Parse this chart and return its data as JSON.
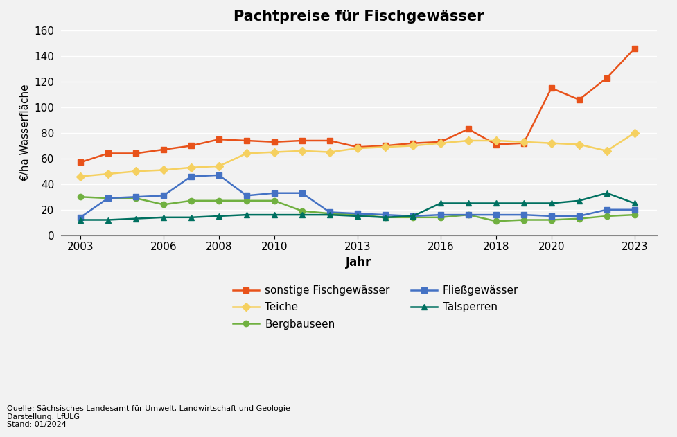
{
  "title": "Pachtpreise für Fischgewässer",
  "ylabel": "€/ha Wasserfläche",
  "xlabel": "Jahr",
  "ylim": [
    0,
    160
  ],
  "yticks": [
    0,
    20,
    40,
    60,
    80,
    100,
    120,
    140,
    160
  ],
  "source_text": "Quelle: Sächsisches Landesamt für Umwelt, Landwirtschaft und Geologie\nDarstellung: LfULG\nStand: 01/2024",
  "series": {
    "sonstige Fischgewässer": {
      "color": "#E8521A",
      "marker": "s",
      "years": [
        2003,
        2004,
        2005,
        2006,
        2007,
        2008,
        2009,
        2010,
        2011,
        2012,
        2013,
        2014,
        2015,
        2016,
        2017,
        2018,
        2019,
        2020,
        2021,
        2022,
        2023
      ],
      "values": [
        57,
        64,
        64,
        67,
        70,
        75,
        74,
        73,
        74,
        74,
        69,
        70,
        72,
        73,
        83,
        71,
        72,
        115,
        106,
        123,
        146
      ]
    },
    "Teiche": {
      "color": "#F5D060",
      "marker": "D",
      "years": [
        2003,
        2004,
        2005,
        2006,
        2007,
        2008,
        2009,
        2010,
        2011,
        2012,
        2013,
        2014,
        2015,
        2016,
        2017,
        2018,
        2019,
        2020,
        2021,
        2022,
        2023
      ],
      "values": [
        46,
        48,
        50,
        51,
        53,
        54,
        64,
        65,
        66,
        65,
        68,
        69,
        70,
        72,
        74,
        74,
        73,
        72,
        71,
        66,
        80
      ]
    },
    "Bergbauseen": {
      "color": "#70B040",
      "marker": "o",
      "years": [
        2003,
        2004,
        2005,
        2006,
        2007,
        2008,
        2009,
        2010,
        2011,
        2012,
        2013,
        2014,
        2015,
        2016,
        2017,
        2018,
        2019,
        2020,
        2021,
        2022,
        2023
      ],
      "values": [
        30,
        29,
        29,
        24,
        27,
        27,
        27,
        27,
        19,
        17,
        16,
        14,
        14,
        14,
        16,
        11,
        12,
        12,
        13,
        15,
        16
      ]
    },
    "Fließgewässer": {
      "color": "#4472C4",
      "marker": "s",
      "years": [
        2003,
        2004,
        2005,
        2006,
        2007,
        2008,
        2009,
        2010,
        2011,
        2012,
        2013,
        2014,
        2015,
        2016,
        2017,
        2018,
        2019,
        2020,
        2021,
        2022,
        2023
      ],
      "values": [
        14,
        29,
        30,
        31,
        46,
        47,
        31,
        33,
        33,
        18,
        17,
        16,
        15,
        16,
        16,
        16,
        16,
        15,
        15,
        20,
        20
      ]
    },
    "Talsperren": {
      "color": "#007060",
      "marker": "^",
      "years": [
        2003,
        2004,
        2005,
        2006,
        2007,
        2008,
        2009,
        2010,
        2011,
        2012,
        2013,
        2014,
        2015,
        2016,
        2017,
        2018,
        2019,
        2020,
        2021,
        2022,
        2023
      ],
      "values": [
        12,
        12,
        13,
        14,
        14,
        15,
        16,
        16,
        16,
        16,
        15,
        14,
        15,
        25,
        25,
        25,
        25,
        25,
        27,
        33,
        25
      ]
    }
  },
  "xticks": [
    2003,
    2006,
    2008,
    2010,
    2013,
    2016,
    2018,
    2020,
    2023
  ],
  "background_color": "#F2F2F2",
  "grid_color": "#FFFFFF",
  "title_fontsize": 15,
  "axis_fontsize": 11,
  "legend_fontsize": 11
}
